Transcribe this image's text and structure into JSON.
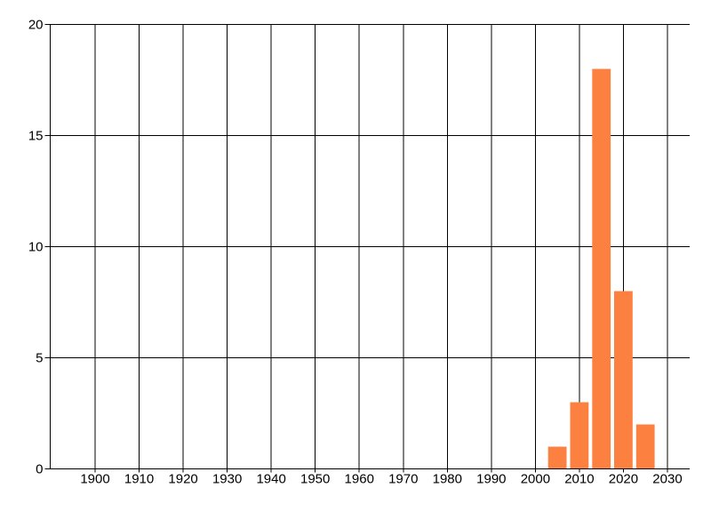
{
  "chart_data": {
    "type": "bar",
    "title": "",
    "xlabel": "",
    "ylabel": "",
    "x": [
      2005,
      2010,
      2015,
      2020,
      2025
    ],
    "values": [
      1,
      3,
      18,
      8,
      2
    ],
    "bar_width_x_units": 4.2,
    "x_ticks": [
      1900,
      1910,
      1920,
      1930,
      1940,
      1950,
      1960,
      1970,
      1980,
      1990,
      2000,
      2010,
      2020,
      2030
    ],
    "x_tick_labels": [
      "1900",
      "1910",
      "1920",
      "1930",
      "1940",
      "1950",
      "1960",
      "1970",
      "1980",
      "1990",
      "2000",
      "2010",
      "2020",
      "2030"
    ],
    "y_ticks": [
      0,
      5,
      10,
      15,
      20
    ],
    "y_tick_labels": [
      "0",
      "5",
      "10",
      "15",
      "20"
    ],
    "xlim": [
      1889.8,
      2035.05
    ],
    "ylim": [
      0,
      20
    ],
    "grid": "both",
    "legend_position": "none",
    "colors": {
      "bar": "#fc8140",
      "grid": "#000000",
      "axis": "#000000",
      "tick_label": "#000000",
      "background": "#ffffff"
    }
  }
}
